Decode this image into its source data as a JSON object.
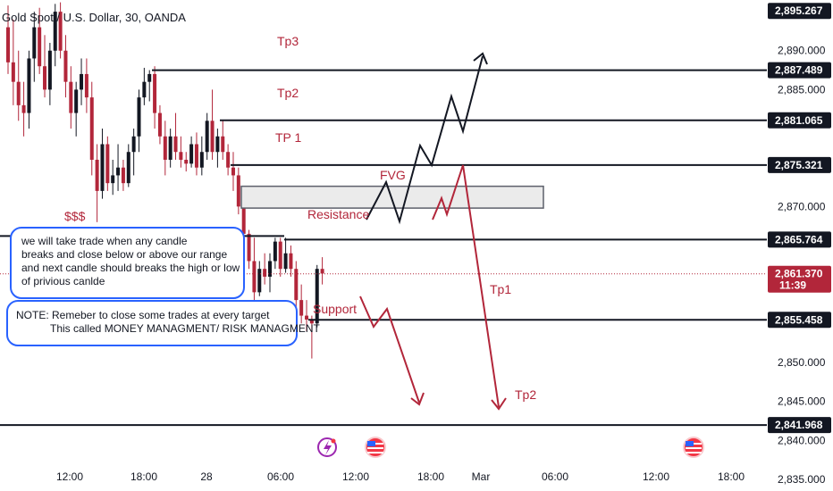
{
  "chart_data": {
    "type": "candlestick",
    "title": "Gold Spot / U.S. Dollar, 30, OANDA",
    "y_range": [
      2833.5,
      2896.5
    ],
    "y_ticks": [
      "2,890.000",
      "2,885.000",
      "2,870.000",
      "2,850.000",
      "2,845.000",
      "2,840.000",
      "2,835.000"
    ],
    "x_ticks": [
      "12:00",
      "18:00",
      "28",
      "06:00",
      "12:00",
      "18:00",
      "Mar",
      "06:00",
      "12:00",
      "18:00"
    ],
    "candles": [
      {
        "o": 2893.0,
        "h": 2895.8,
        "l": 2887.0,
        "c": 2888.5
      },
      {
        "o": 2888.5,
        "h": 2894.0,
        "l": 2883.0,
        "c": 2886.0
      },
      {
        "o": 2886.0,
        "h": 2890.0,
        "l": 2881.0,
        "c": 2883.0
      },
      {
        "o": 2883.0,
        "h": 2886.0,
        "l": 2879.0,
        "c": 2882.0
      },
      {
        "o": 2882.0,
        "h": 2890.0,
        "l": 2880.0,
        "c": 2889.0
      },
      {
        "o": 2889.0,
        "h": 2895.0,
        "l": 2886.0,
        "c": 2893.0
      },
      {
        "o": 2893.0,
        "h": 2895.5,
        "l": 2887.0,
        "c": 2888.0
      },
      {
        "o": 2888.0,
        "h": 2892.0,
        "l": 2884.0,
        "c": 2885.0
      },
      {
        "o": 2885.0,
        "h": 2891.0,
        "l": 2883.0,
        "c": 2890.0
      },
      {
        "o": 2890.0,
        "h": 2896.0,
        "l": 2888.0,
        "c": 2895.0
      },
      {
        "o": 2895.0,
        "h": 2896.2,
        "l": 2889.0,
        "c": 2890.0
      },
      {
        "o": 2890.0,
        "h": 2892.0,
        "l": 2884.0,
        "c": 2886.0
      },
      {
        "o": 2886.0,
        "h": 2888.0,
        "l": 2880.0,
        "c": 2882.0
      },
      {
        "o": 2882.0,
        "h": 2886.0,
        "l": 2879.0,
        "c": 2885.0
      },
      {
        "o": 2885.0,
        "h": 2889.0,
        "l": 2883.0,
        "c": 2887.0
      },
      {
        "o": 2887.0,
        "h": 2889.0,
        "l": 2882.0,
        "c": 2884.0
      },
      {
        "o": 2884.0,
        "h": 2886.0,
        "l": 2874.0,
        "c": 2876.0
      },
      {
        "o": 2876.0,
        "h": 2878.0,
        "l": 2868.0,
        "c": 2872.0
      },
      {
        "o": 2872.0,
        "h": 2880.0,
        "l": 2871.0,
        "c": 2878.0
      },
      {
        "o": 2878.0,
        "h": 2879.0,
        "l": 2872.0,
        "c": 2873.0
      },
      {
        "o": 2873.0,
        "h": 2876.0,
        "l": 2871.5,
        "c": 2874.0
      },
      {
        "o": 2874.0,
        "h": 2878.0,
        "l": 2872.0,
        "c": 2875.0
      },
      {
        "o": 2875.0,
        "h": 2876.0,
        "l": 2872.0,
        "c": 2873.0
      },
      {
        "o": 2873.0,
        "h": 2878.0,
        "l": 2872.5,
        "c": 2877.0
      },
      {
        "o": 2877.0,
        "h": 2880.0,
        "l": 2874.0,
        "c": 2879.0
      },
      {
        "o": 2879.0,
        "h": 2885.0,
        "l": 2877.0,
        "c": 2884.0
      },
      {
        "o": 2884.0,
        "h": 2887.8,
        "l": 2883.0,
        "c": 2886.0
      },
      {
        "o": 2886.0,
        "h": 2887.5,
        "l": 2883.5,
        "c": 2887.0
      },
      {
        "o": 2887.0,
        "h": 2888.0,
        "l": 2880.0,
        "c": 2882.0
      },
      {
        "o": 2882.0,
        "h": 2883.0,
        "l": 2878.0,
        "c": 2879.0
      },
      {
        "o": 2879.0,
        "h": 2881.0,
        "l": 2874.0,
        "c": 2876.0
      },
      {
        "o": 2876.0,
        "h": 2880.0,
        "l": 2875.0,
        "c": 2879.0
      },
      {
        "o": 2879.0,
        "h": 2882.0,
        "l": 2876.0,
        "c": 2877.0
      },
      {
        "o": 2877.0,
        "h": 2879.0,
        "l": 2875.0,
        "c": 2876.0
      },
      {
        "o": 2876.0,
        "h": 2877.0,
        "l": 2874.5,
        "c": 2875.5
      },
      {
        "o": 2875.5,
        "h": 2879.0,
        "l": 2875.0,
        "c": 2878.0
      },
      {
        "o": 2878.0,
        "h": 2879.5,
        "l": 2874.0,
        "c": 2875.0
      },
      {
        "o": 2875.0,
        "h": 2879.0,
        "l": 2874.0,
        "c": 2877.0
      },
      {
        "o": 2877.0,
        "h": 2882.0,
        "l": 2876.0,
        "c": 2881.0
      },
      {
        "o": 2881.0,
        "h": 2885.0,
        "l": 2876.0,
        "c": 2877.0
      },
      {
        "o": 2877.0,
        "h": 2880.0,
        "l": 2875.0,
        "c": 2879.0
      },
      {
        "o": 2879.0,
        "h": 2881.0,
        "l": 2876.0,
        "c": 2877.0
      },
      {
        "o": 2877.0,
        "h": 2878.0,
        "l": 2874.0,
        "c": 2875.0
      },
      {
        "o": 2875.0,
        "h": 2877.0,
        "l": 2872.0,
        "c": 2874.0
      },
      {
        "o": 2874.0,
        "h": 2875.0,
        "l": 2869.0,
        "c": 2870.0
      },
      {
        "o": 2870.0,
        "h": 2871.0,
        "l": 2865.0,
        "c": 2866.5
      },
      {
        "o": 2866.5,
        "h": 2867.0,
        "l": 2862.0,
        "c": 2863.0
      },
      {
        "o": 2863.0,
        "h": 2866.0,
        "l": 2858.0,
        "c": 2859.0
      },
      {
        "o": 2859.0,
        "h": 2863.0,
        "l": 2858.5,
        "c": 2862.0
      },
      {
        "o": 2862.0,
        "h": 2864.0,
        "l": 2860.0,
        "c": 2861.0
      },
      {
        "o": 2861.0,
        "h": 2864.0,
        "l": 2859.0,
        "c": 2863.0
      },
      {
        "o": 2863.0,
        "h": 2866.0,
        "l": 2862.0,
        "c": 2865.5
      },
      {
        "o": 2865.5,
        "h": 2866.0,
        "l": 2861.0,
        "c": 2862.0
      },
      {
        "o": 2862.0,
        "h": 2866.0,
        "l": 2861.5,
        "c": 2864.0
      },
      {
        "o": 2864.0,
        "h": 2865.0,
        "l": 2861.0,
        "c": 2862.0
      },
      {
        "o": 2862.0,
        "h": 2863.0,
        "l": 2857.0,
        "c": 2858.0
      },
      {
        "o": 2858.0,
        "h": 2860.0,
        "l": 2855.0,
        "c": 2856.0
      },
      {
        "o": 2856.0,
        "h": 2858.0,
        "l": 2854.0,
        "c": 2855.5
      },
      {
        "o": 2855.5,
        "h": 2856.0,
        "l": 2850.5,
        "c": 2855.0
      },
      {
        "o": 2855.0,
        "h": 2862.5,
        "l": 2854.5,
        "c": 2862.0
      },
      {
        "o": 2862.0,
        "h": 2863.5,
        "l": 2860.0,
        "c": 2861.4
      }
    ],
    "levels": [
      {
        "name": "Tp3",
        "price": 2887.489,
        "label": "2,887.489"
      },
      {
        "name": "Tp2",
        "price": 2881.065,
        "label": "2,881.065"
      },
      {
        "name": "TP 1",
        "price": 2875.321,
        "label": "2,875.321"
      },
      {
        "name": "Resistance",
        "price": 2865.764,
        "label": "2,865.764"
      },
      {
        "name": "Support",
        "price": 2855.458,
        "label": "2,855.458"
      },
      {
        "name": "Tp2",
        "price": 2841.968,
        "label": "2,841.968"
      }
    ],
    "top_price_label": "2,895.267",
    "current_price": {
      "price": 2861.37,
      "label": "2,861.370",
      "countdown": "11:39"
    },
    "fvg": {
      "label": "FVG",
      "top": 2872.6,
      "bottom": 2869.8
    },
    "sss_label": "$$$",
    "tp1_label": "Tp1",
    "notes": {
      "box1": [
        "we will take trade when any candle",
        "breaks and close below or above our range",
        "and next candle should breaks the high or low",
        "of privious canlde"
      ],
      "box2": [
        "NOTE: Remeber to close some trades at every target",
        "This called MONEY MANAGMENT/ RISK MANAGMENT"
      ]
    },
    "colors": {
      "bull": "#131722",
      "bear": "#b2263a",
      "accent": "#2962ff",
      "annotation": "#b2263a"
    }
  }
}
